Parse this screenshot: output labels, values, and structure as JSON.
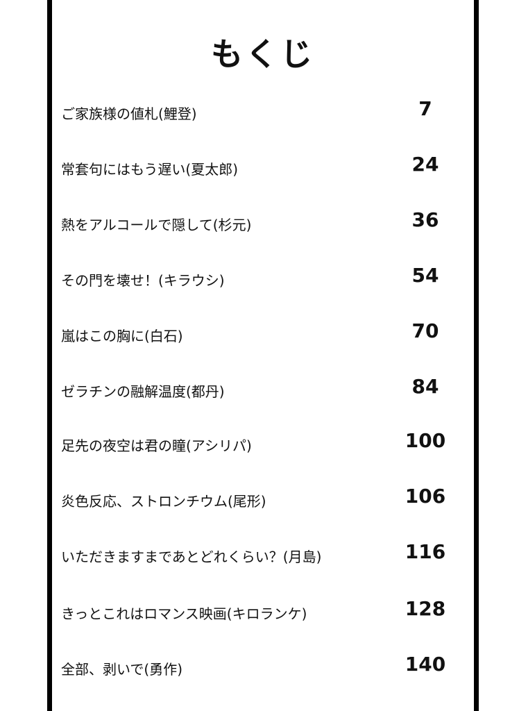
{
  "title": "もくじ",
  "entries": [
    {
      "title": "ご家族様の値札(鯉登)",
      "page": "7"
    },
    {
      "title": "常套句にはもう遅い(夏太郎)",
      "page": "24"
    },
    {
      "title": "熱をアルコールで隠して(杉元)",
      "page": "36"
    },
    {
      "title": "その門を壊せ！(キラウシ)",
      "page": "54"
    },
    {
      "title": "嵐はこの胸に(白石)",
      "page": "70"
    },
    {
      "title": "ゼラチンの融解温度(都丹)",
      "page": "84"
    },
    {
      "title": "足先の夜空は君の瞳(アシリパ)",
      "page": "100"
    },
    {
      "title": "炎色反応、ストロンチウム(尾形)",
      "page": "106"
    },
    {
      "title": "いただきますまであとどれくらい？(月島)",
      "page": "116"
    },
    {
      "title": "きっとこれはロマンス映画(キロランケ)",
      "page": "128"
    },
    {
      "title": "全部、剥いで(勇作)",
      "page": "140"
    }
  ]
}
